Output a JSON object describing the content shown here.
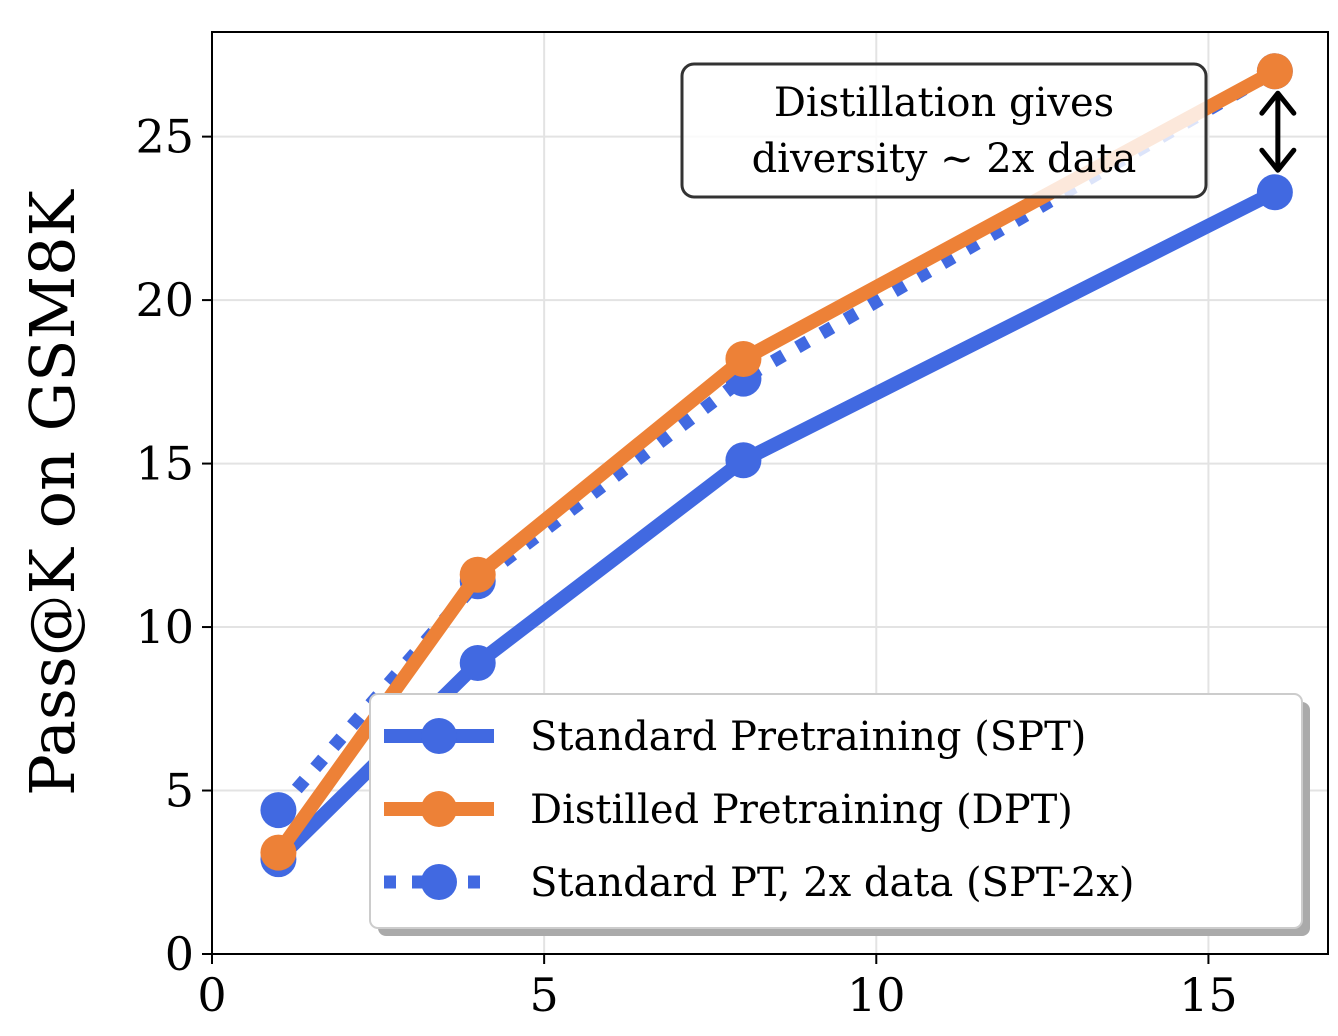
{
  "chart_data": {
    "type": "line",
    "title": "",
    "xlabel": "",
    "ylabel": "Pass@K on GSM8K",
    "xlim": [
      0,
      16.8
    ],
    "ylim": [
      0,
      28.2
    ],
    "xticks": [
      0,
      5,
      10,
      15
    ],
    "yticks": [
      0,
      5,
      10,
      15,
      20,
      25
    ],
    "grid": true,
    "legend_position": "bottom-right",
    "series": [
      {
        "name": "Standard Pretraining (SPT)",
        "color": "#4169E1",
        "style": "solid",
        "x": [
          1,
          4,
          8,
          16
        ],
        "y": [
          2.9,
          8.9,
          15.1,
          23.3
        ]
      },
      {
        "name": "Distilled Pretraining (DPT)",
        "color": "#ED8137",
        "style": "solid",
        "x": [
          1,
          4,
          8,
          16
        ],
        "y": [
          3.1,
          11.6,
          18.2,
          27.0
        ]
      },
      {
        "name": "Standard PT, 2x data (SPT-2x)",
        "color": "#4169E1",
        "style": "dotted",
        "x": [
          1,
          4,
          8,
          16
        ],
        "y": [
          4.4,
          11.4,
          17.6,
          27.0
        ]
      }
    ],
    "annotation": {
      "lines": [
        "Distillation gives",
        "diversity ~ 2x data"
      ],
      "arrow_x": 16,
      "arrow_y": [
        23.3,
        27.0
      ]
    }
  }
}
